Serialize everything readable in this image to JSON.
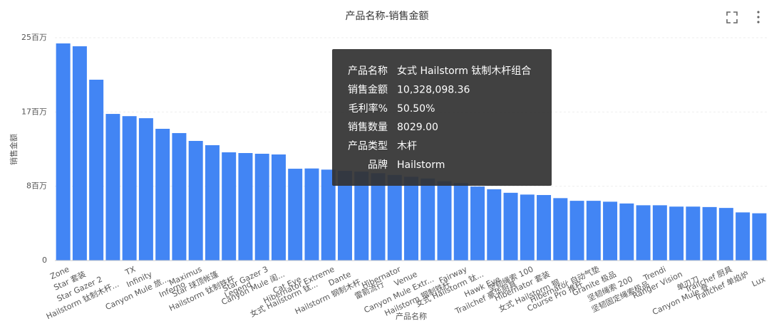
{
  "chart_data": {
    "type": "bar",
    "title": "产品名称-销售金额",
    "x_label": "产品名称",
    "y_label": "销售金额",
    "categories": [
      "Zone",
      "Star 套装",
      "Star Gazer 2",
      "Hailstorm 钛制木杆...",
      "TX",
      "Infinity",
      "Canyon Mule 旅...",
      "Inferno",
      "Maximus",
      "Star 球顶帐篷",
      "Hailstorm 钛制铁杆",
      "Legend",
      "Star Gazer 3",
      "Canyon Mule 闺...",
      "Cat Eye",
      "女式 Hailstorm 钛...",
      "Hibernator Extreme",
      "Dante",
      "Hailstorm 钢制木杆...",
      "雷箭流行",
      "Hibernator",
      "Venue",
      "Canyon Mule Extr...",
      "Hailstorm 钢制铁杆",
      "Fairway",
      "女式 Hailstorm 钛...",
      "Hawk Eye",
      "Trailchef 豪华厨具",
      "坚韧绳索 100",
      "Hibernator 套装",
      "女式 Hailstorm 钢...",
      "Course Pro 推杆",
      "Hibernator 自动气垫",
      "Granite 极品",
      "坚韧绳索 200",
      "坚韧固定绳索极品",
      "Trendi",
      "Ranger Vision",
      "单刃刀",
      "Canyon Mule 登...",
      "Trailchef 厨具",
      "Trailchef 单焰炉",
      "Lux"
    ],
    "values": [
      24360000,
      24040000,
      20290000,
      16450000,
      16200000,
      15970000,
      14780000,
      14300000,
      13420000,
      12940000,
      12140000,
      12060000,
      11980000,
      11900000,
      10300000,
      10328098.36,
      10200000,
      10060000,
      9980000,
      9800000,
      9600000,
      9400000,
      9200000,
      8900000,
      8700000,
      8300000,
      8000000,
      7600000,
      7400000,
      7350000,
      7000000,
      6700000,
      6700000,
      6600000,
      6400000,
      6200000,
      6200000,
      6050000,
      6050000,
      6000000,
      5900000,
      5400000,
      5300000
    ],
    "color": "#4285f4",
    "ylim": [
      0,
      25000000
    ],
    "yticks": [
      {
        "value": 0,
        "label": "0"
      },
      {
        "value": 8333333,
        "label": "8百万"
      },
      {
        "value": 16666667,
        "label": "17百万"
      },
      {
        "value": 25000000,
        "label": "25百万"
      }
    ],
    "grid": true,
    "tooltip": [
      {
        "label": "产品名称",
        "value": "女式 Hailstorm 钛制木杆组合"
      },
      {
        "label": "销售金额",
        "value": "10,328,098.36"
      },
      {
        "label": "毛利率%",
        "value": "50.50%"
      },
      {
        "label": "销售数量",
        "value": "8029.00"
      },
      {
        "label": "产品类型",
        "value": "木杆"
      },
      {
        "label": "品牌",
        "value": "Hailstorm"
      }
    ]
  }
}
